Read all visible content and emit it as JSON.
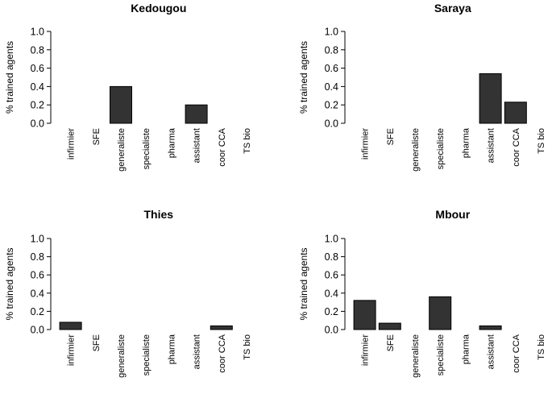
{
  "chart_data": [
    {
      "type": "bar",
      "title": "Kedougou",
      "ylabel": "% trained agents",
      "xlabel": "",
      "ylim": [
        0,
        1.0
      ],
      "yticks": [
        "0.0",
        "0.2",
        "0.4",
        "0.6",
        "0.8",
        "1.0"
      ],
      "categories": [
        "infirmier",
        "SFE",
        "generaliste",
        "specialiste",
        "pharma",
        "assistant",
        "coor CCA",
        "TS bio"
      ],
      "values": [
        0,
        0,
        0.4,
        0,
        0,
        0.2,
        0,
        0
      ],
      "bar_color": "#333333"
    },
    {
      "type": "bar",
      "title": "Saraya",
      "ylabel": "% trained agents",
      "xlabel": "",
      "ylim": [
        0,
        1.0
      ],
      "yticks": [
        "0.0",
        "0.2",
        "0.4",
        "0.6",
        "0.8",
        "1.0"
      ],
      "categories": [
        "infirmier",
        "SFE",
        "generaliste",
        "specialiste",
        "pharma",
        "assistant",
        "coor CCA",
        "TS bio"
      ],
      "values": [
        0,
        0,
        0,
        0,
        0,
        0.54,
        0.23,
        0
      ],
      "bar_color": "#333333"
    },
    {
      "type": "bar",
      "title": "Thies",
      "ylabel": "% trained agents",
      "xlabel": "",
      "ylim": [
        0,
        1.0
      ],
      "yticks": [
        "0.0",
        "0.2",
        "0.4",
        "0.6",
        "0.8",
        "1.0"
      ],
      "categories": [
        "infirmier",
        "SFE",
        "generaliste",
        "specialiste",
        "pharma",
        "assistant",
        "coor CCA",
        "TS bio"
      ],
      "values": [
        0.08,
        0,
        0,
        0,
        0,
        0,
        0.04,
        0
      ],
      "bar_color": "#333333"
    },
    {
      "type": "bar",
      "title": "Mbour",
      "ylabel": "% trained agents",
      "xlabel": "",
      "ylim": [
        0,
        1.0
      ],
      "yticks": [
        "0.0",
        "0.2",
        "0.4",
        "0.6",
        "0.8",
        "1.0"
      ],
      "categories": [
        "infirmier",
        "SFE",
        "generaliste",
        "specialiste",
        "pharma",
        "assistant",
        "coor CCA",
        "TS bio"
      ],
      "values": [
        0.32,
        0.07,
        0,
        0.36,
        0,
        0.04,
        0,
        0
      ],
      "bar_color": "#333333"
    }
  ]
}
